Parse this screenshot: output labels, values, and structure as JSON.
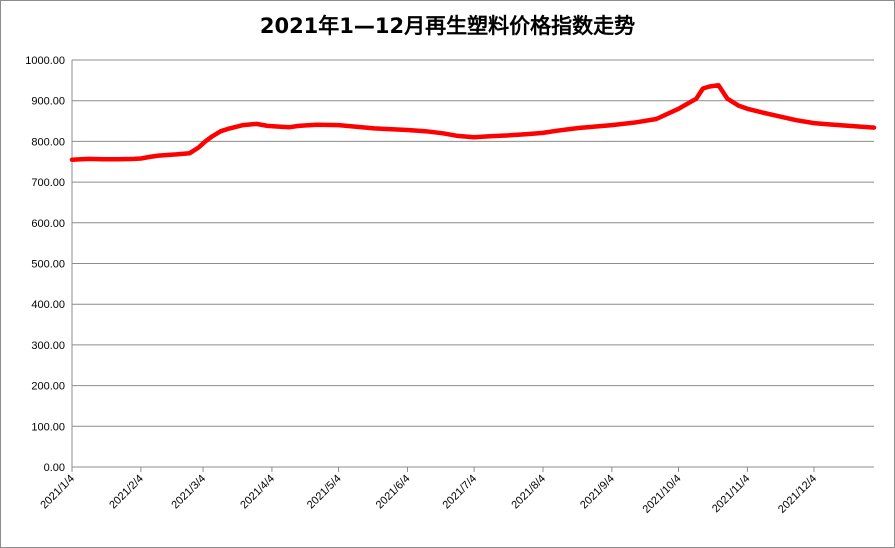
{
  "chart_data": {
    "type": "line",
    "title": "2021年1—12月再生塑料价格指数走势",
    "xlabel": "",
    "ylabel": "",
    "ylim": [
      0,
      1000
    ],
    "y_ticks": [
      "0.00",
      "100.00",
      "200.00",
      "300.00",
      "400.00",
      "500.00",
      "600.00",
      "700.00",
      "800.00",
      "900.00",
      "1000.00"
    ],
    "x_ticks": [
      "2021/1/4",
      "2021/2/4",
      "2021/3/4",
      "2021/4/4",
      "2021/5/4",
      "2021/6/4",
      "2021/7/4",
      "2021/8/4",
      "2021/9/4",
      "2021/10/4",
      "2021/11/4",
      "2021/12/4"
    ],
    "grid": true,
    "legend": "none",
    "line_color": "#ff0000",
    "series": [
      {
        "values_by_date": [
          [
            "2021-01-04",
            755
          ],
          [
            "2021-01-08",
            756
          ],
          [
            "2021-01-12",
            757
          ],
          [
            "2021-01-18",
            756
          ],
          [
            "2021-01-25",
            756
          ],
          [
            "2021-02-01",
            757
          ],
          [
            "2021-02-04",
            758
          ],
          [
            "2021-02-08",
            762
          ],
          [
            "2021-02-12",
            765
          ],
          [
            "2021-02-20",
            768
          ],
          [
            "2021-02-26",
            771
          ],
          [
            "2021-03-02",
            785
          ],
          [
            "2021-03-05",
            800
          ],
          [
            "2021-03-08",
            812
          ],
          [
            "2021-03-12",
            825
          ],
          [
            "2021-03-16",
            832
          ],
          [
            "2021-03-22",
            840
          ],
          [
            "2021-03-28",
            843
          ],
          [
            "2021-04-02",
            838
          ],
          [
            "2021-04-08",
            836
          ],
          [
            "2021-04-12",
            835
          ],
          [
            "2021-04-16",
            838
          ],
          [
            "2021-04-24",
            841
          ],
          [
            "2021-05-04",
            840
          ],
          [
            "2021-05-12",
            836
          ],
          [
            "2021-05-20",
            832
          ],
          [
            "2021-05-28",
            830
          ],
          [
            "2021-06-04",
            828
          ],
          [
            "2021-06-12",
            825
          ],
          [
            "2021-06-20",
            820
          ],
          [
            "2021-06-26",
            814
          ],
          [
            "2021-07-04",
            810
          ],
          [
            "2021-07-12",
            813
          ],
          [
            "2021-07-20",
            815
          ],
          [
            "2021-07-28",
            818
          ],
          [
            "2021-08-04",
            821
          ],
          [
            "2021-08-10",
            826
          ],
          [
            "2021-08-20",
            833
          ],
          [
            "2021-09-04",
            840
          ],
          [
            "2021-09-15",
            847
          ],
          [
            "2021-09-24",
            855
          ],
          [
            "2021-10-04",
            880
          ],
          [
            "2021-10-12",
            905
          ],
          [
            "2021-10-15",
            930
          ],
          [
            "2021-10-18",
            935
          ],
          [
            "2021-10-22",
            938
          ],
          [
            "2021-10-26",
            905
          ],
          [
            "2021-10-31",
            888
          ],
          [
            "2021-11-04",
            880
          ],
          [
            "2021-11-10",
            872
          ],
          [
            "2021-11-18",
            862
          ],
          [
            "2021-11-26",
            852
          ],
          [
            "2021-12-04",
            845
          ],
          [
            "2021-12-10",
            842
          ],
          [
            "2021-12-20",
            838
          ],
          [
            "2021-12-31",
            834
          ]
        ]
      }
    ]
  }
}
